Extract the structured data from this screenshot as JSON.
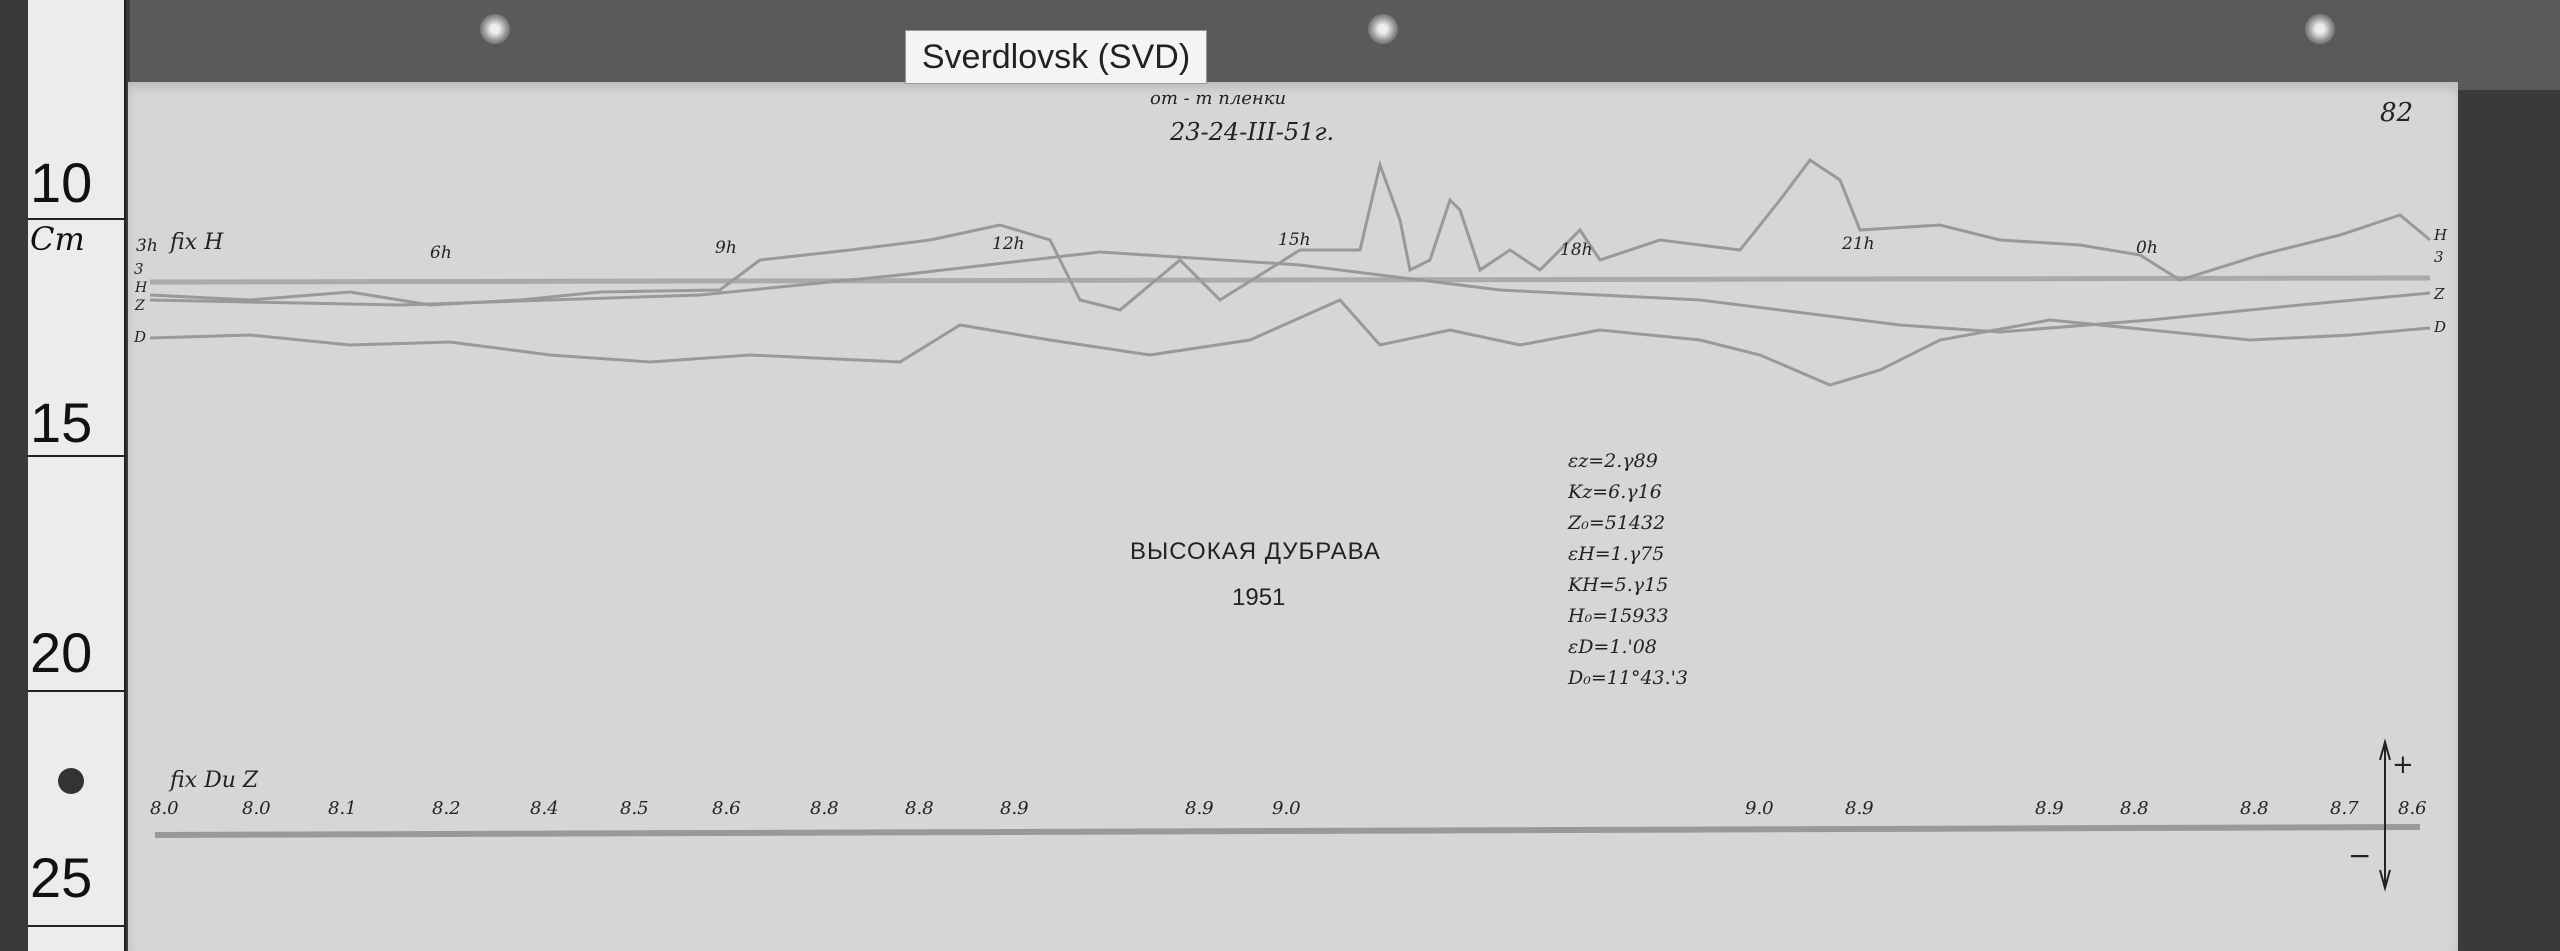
{
  "header": {
    "station_tag": "Sverdlovsk (SVD)",
    "date_note_top": "от - m пленки",
    "date": "23-24-III-51г.",
    "page_number": "82"
  },
  "ruler": {
    "marks": [
      "10",
      "Cm",
      "15",
      "20",
      "25"
    ]
  },
  "trace_labels": {
    "left": [
      "3",
      "H",
      "Z",
      "D"
    ],
    "right": [
      "H",
      "3",
      "Z",
      "D"
    ],
    "fix_top": "fix H",
    "fix_bottom": "fix Du Z"
  },
  "hour_marks": [
    "3h",
    "6h",
    "9h",
    "12h",
    "15h",
    "18h",
    "21h",
    "0h"
  ],
  "title": {
    "station": "ВЫСОКАЯ ДУБРАВА",
    "year": "1951"
  },
  "parameters": [
    "εz=2.γ89",
    "Kz=6.γ16",
    "Z₀=51432",
    "εH=1.γ75",
    "KH=5.γ15",
    "H₀=15933",
    "εD=1.'08",
    "D₀=11°43.'3"
  ],
  "temperature_scale": [
    "8.0",
    "8.0",
    "8.1",
    "8.2",
    "8.4",
    "8.5",
    "8.6",
    "8.8",
    "8.8",
    "8.9",
    "8.9",
    "9.0",
    "9.0",
    "8.9",
    "8.9",
    "8.8",
    "8.8",
    "8.7",
    "8.6"
  ],
  "sign_legend": {
    "plus": "+",
    "minus": "−"
  },
  "colors": {
    "paper": "#d6d6d6",
    "trace": "#999999",
    "ink": "#222222"
  }
}
